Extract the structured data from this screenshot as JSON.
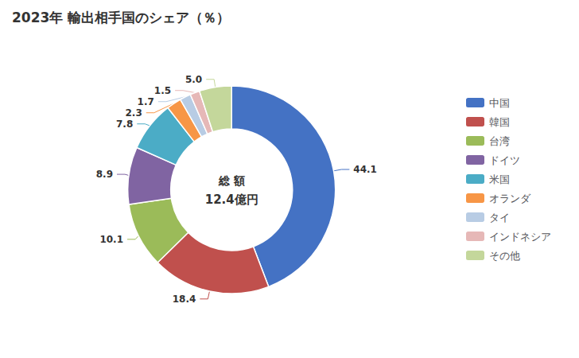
{
  "chart_data": {
    "type": "donut",
    "title": "2023年 輸出相手国のシェア（％）",
    "annotations": [
      "総 額",
      "12.4億円"
    ],
    "categories": [
      "中国",
      "韓国",
      "台湾",
      "ドイツ",
      "米国",
      "オランダ",
      "タイ",
      "インドネシア",
      "その他"
    ],
    "values": [
      44.1,
      18.4,
      10.1,
      8.9,
      7.8,
      2.3,
      1.7,
      1.5,
      5.0
    ],
    "value_labels": [
      "44.1",
      "18.4",
      "10.1",
      "8.9",
      "7.8",
      "2.3",
      "1.7",
      "1.5",
      "5.0"
    ],
    "colors": [
      "#4472C4",
      "#C0504D",
      "#9BBB59",
      "#8064A2",
      "#4BACC6",
      "#F79646",
      "#B8CCE4",
      "#E6B8B7",
      "#C4D79B"
    ],
    "data_labels": true,
    "legend": "right"
  }
}
